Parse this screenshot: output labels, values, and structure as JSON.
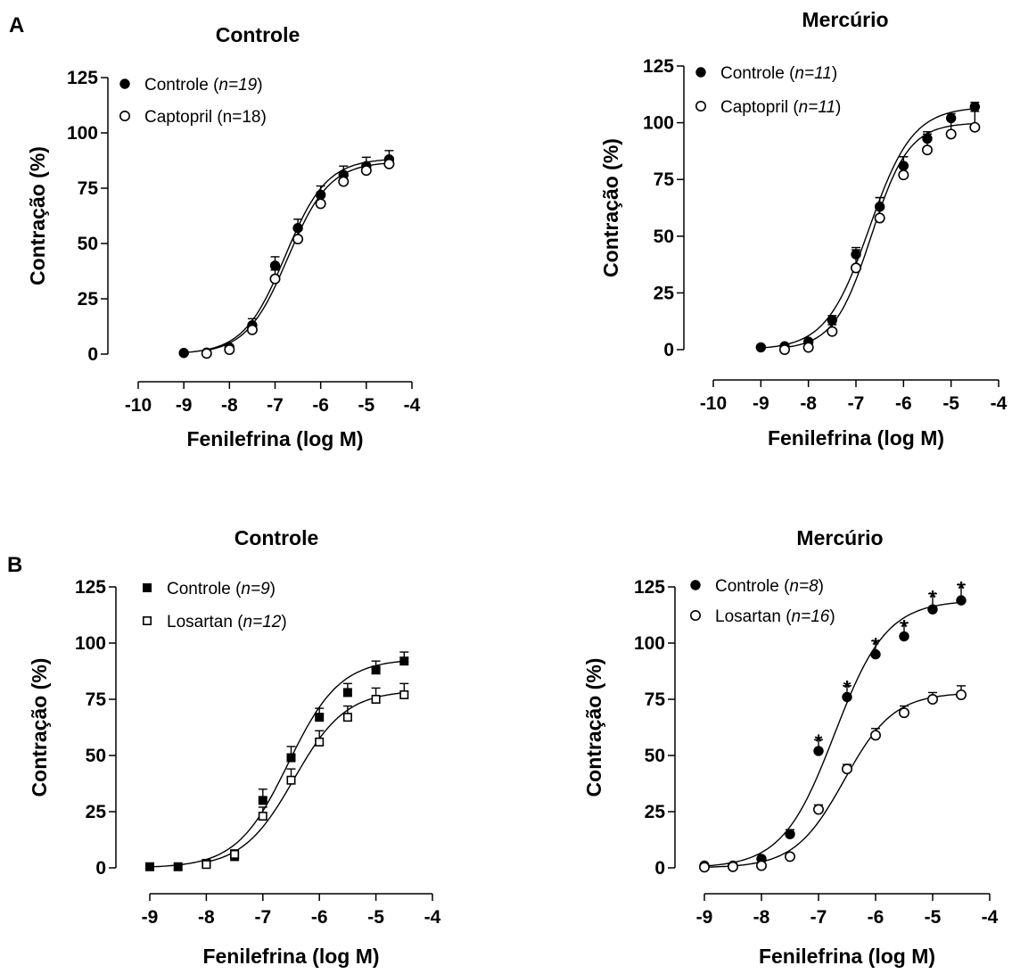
{
  "chart_data": [
    {
      "type": "scatter",
      "panel_label": "A",
      "title": "Controle",
      "xlabel": "Fenilefrina (log M)",
      "ylabel": "Contração (%)",
      "xlim": [
        -10,
        -4
      ],
      "ylim": [
        0,
        125
      ],
      "xticks": [
        -10,
        -9,
        -8,
        -7,
        -6,
        -5,
        -4
      ],
      "yticks": [
        0,
        25,
        50,
        75,
        100,
        125
      ],
      "legend_position": "top-left",
      "series": [
        {
          "name": "Controle",
          "name_n": "n=19",
          "n_italic": true,
          "marker": "filled-circle",
          "x": [
            -9,
            -8.5,
            -8,
            -7.5,
            -7,
            -6.5,
            -6,
            -5.5,
            -5,
            -4.5
          ],
          "y": [
            0.5,
            0.7,
            3,
            13,
            40,
            57,
            72,
            81,
            85,
            88
          ],
          "err": [
            0,
            0,
            1,
            3,
            4,
            4,
            4,
            4,
            4,
            4
          ],
          "fit": {
            "bottom": 0,
            "top": 88.5,
            "logec50": -6.78,
            "hill": 0.95
          }
        },
        {
          "name": "Captopril",
          "name_n": "n=18",
          "n_italic": false,
          "marker": "open-circle",
          "x": [
            -8.5,
            -8,
            -7.5,
            -7,
            -6.5,
            -6,
            -5.5,
            -5,
            -4.5
          ],
          "y": [
            0.3,
            2,
            11,
            34,
            52,
            68,
            78,
            83,
            86
          ],
          "err": [
            0,
            1,
            2,
            4,
            4,
            3,
            3,
            3,
            3
          ],
          "fit": {
            "bottom": 0,
            "top": 87,
            "logec50": -6.72,
            "hill": 0.95
          }
        }
      ]
    },
    {
      "type": "scatter",
      "panel_label": "",
      "title": "Mercúrio",
      "xlabel": "Fenilefrina (log M)",
      "ylabel": "Contração (%)",
      "xlim": [
        -10,
        -4
      ],
      "ylim": [
        0,
        125
      ],
      "xticks": [
        -10,
        -9,
        -8,
        -7,
        -6,
        -5,
        -4
      ],
      "yticks": [
        0,
        25,
        50,
        75,
        100,
        125
      ],
      "legend_position": "top-left",
      "series": [
        {
          "name": "Controle",
          "name_n": "n=11",
          "n_italic": true,
          "marker": "filled-circle",
          "x": [
            -9,
            -8.5,
            -8,
            -7.5,
            -7,
            -6.5,
            -6,
            -5.5,
            -5,
            -4.5
          ],
          "y": [
            1,
            1.5,
            3.5,
            13,
            42,
            63,
            81,
            93,
            102,
            107
          ],
          "err": [
            0,
            0,
            1,
            2,
            3,
            4,
            4,
            3,
            2,
            2
          ],
          "fit": {
            "bottom": 0,
            "top": 107,
            "logec50": -6.72,
            "hill": 0.95
          }
        },
        {
          "name": "Captopril",
          "name_n": "n=11",
          "n_italic": true,
          "marker": "open-circle",
          "x": [
            -8.5,
            -8,
            -7.5,
            -7,
            -6.5,
            -6,
            -5.5,
            -5,
            -4.5
          ],
          "y": [
            0,
            1,
            8,
            36,
            58,
            77,
            88,
            95,
            98
          ],
          "err": [
            0,
            1,
            3,
            8,
            9,
            8,
            7,
            7,
            7
          ],
          "fit": {
            "bottom": 0,
            "top": 100,
            "logec50": -6.68,
            "hill": 1.1
          }
        }
      ]
    },
    {
      "type": "scatter",
      "panel_label": "B",
      "title": "Controle",
      "xlabel": "Fenilefrina (log M)",
      "ylabel": "Contração (%)",
      "xlim": [
        -9,
        -4
      ],
      "ylim": [
        0,
        125
      ],
      "xticks": [
        -9,
        -8,
        -7,
        -6,
        -5,
        -4
      ],
      "yticks": [
        0,
        25,
        50,
        75,
        100,
        125
      ],
      "legend_position": "top-left",
      "series": [
        {
          "name": "Controle",
          "name_n": "n=9",
          "n_italic": true,
          "marker": "filled-square",
          "x": [
            -9,
            -8.5,
            -8,
            -7.5,
            -7,
            -6.5,
            -6,
            -5.5,
            -5,
            -4.5
          ],
          "y": [
            0.5,
            0.5,
            2,
            5,
            30,
            49,
            67,
            78,
            88,
            92
          ],
          "err": [
            0,
            0,
            1,
            2,
            5,
            5,
            4,
            4,
            4,
            4
          ],
          "fit": {
            "bottom": 0,
            "top": 93,
            "logec50": -6.55,
            "hill": 0.95
          }
        },
        {
          "name": "Losartan",
          "name_n": "n=12",
          "n_italic": true,
          "marker": "open-square",
          "x": [
            -8,
            -7.5,
            -7,
            -6.5,
            -6,
            -5.5,
            -5,
            -4.5
          ],
          "y": [
            1.5,
            6,
            23,
            39,
            56,
            67,
            75,
            77
          ],
          "err": [
            1,
            2,
            4,
            5,
            5,
            5,
            5,
            5
          ],
          "fit": {
            "bottom": 0,
            "top": 79,
            "logec50": -6.45,
            "hill": 0.95
          }
        }
      ]
    },
    {
      "type": "scatter",
      "panel_label": "",
      "title": "Mercúrio",
      "xlabel": "Fenilefrina (log M)",
      "ylabel": "Contração (%)",
      "xlim": [
        -9,
        -4
      ],
      "ylim": [
        0,
        125
      ],
      "xticks": [
        -9,
        -8,
        -7,
        -6,
        -5,
        -4
      ],
      "yticks": [
        0,
        25,
        50,
        75,
        100,
        125
      ],
      "legend_position": "top-left",
      "annotations": [
        {
          "text": "*",
          "x": -7.0,
          "y": 58
        },
        {
          "text": "*",
          "x": -6.5,
          "y": 82
        },
        {
          "text": "*",
          "x": -6.0,
          "y": 101
        },
        {
          "text": "*",
          "x": -5.5,
          "y": 109
        },
        {
          "text": "*",
          "x": -5.0,
          "y": 122
        },
        {
          "text": "*",
          "x": -4.5,
          "y": 126
        }
      ],
      "series": [
        {
          "name": "Controle",
          "name_n": "n=8",
          "n_italic": true,
          "marker": "filled-circle",
          "x": [
            -9,
            -8.5,
            -8,
            -7.5,
            -7,
            -6.5,
            -6,
            -5.5,
            -5,
            -4.5
          ],
          "y": [
            1,
            1,
            4,
            15,
            52,
            76,
            95,
            103,
            115,
            119
          ],
          "err": [
            0,
            0,
            1,
            2,
            5,
            5,
            6,
            6,
            7,
            7
          ],
          "fit": {
            "bottom": 0,
            "top": 119,
            "logec50": -6.72,
            "hill": 0.95
          }
        },
        {
          "name": "Losartan",
          "name_n": "n=16",
          "n_italic": true,
          "marker": "open-circle",
          "x": [
            -9,
            -8.5,
            -8,
            -7.5,
            -7,
            -6.5,
            -6,
            -5.5,
            -5,
            -4.5
          ],
          "y": [
            0.3,
            0.5,
            1,
            5,
            26,
            44,
            59,
            69,
            75,
            77
          ],
          "err": [
            0,
            0,
            0,
            1,
            2,
            2,
            3,
            3,
            3,
            4
          ],
          "fit": {
            "bottom": 0,
            "top": 78,
            "logec50": -6.55,
            "hill": 1.0
          }
        }
      ]
    }
  ]
}
